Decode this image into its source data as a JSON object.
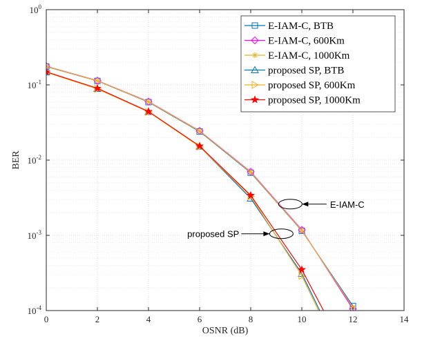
{
  "chart_data": {
    "type": "line",
    "title": "",
    "xlabel": "OSNR (dB)",
    "ylabel": "BER",
    "xlim": [
      0,
      14
    ],
    "ylim": [
      0.0001,
      1
    ],
    "yscale": "log",
    "grid": true,
    "legend_position": "top-right",
    "x_ticks": [
      "0",
      "2",
      "4",
      "6",
      "8",
      "10",
      "12",
      "14"
    ],
    "y_ticks": [
      {
        "base": "10",
        "exp": "0",
        "value": 1
      },
      {
        "base": "10",
        "exp": "-1",
        "value": 0.1
      },
      {
        "base": "10",
        "exp": "-2",
        "value": 0.01
      },
      {
        "base": "10",
        "exp": "-3",
        "value": 0.001
      },
      {
        "base": "10",
        "exp": "-4",
        "value": 0.0001
      }
    ],
    "series": [
      {
        "name": "E-IAM-C, BTB",
        "color": "#0072BD",
        "marker": "square",
        "x": [
          0,
          2,
          4,
          6,
          8,
          10,
          12
        ],
        "y": [
          0.175,
          0.113,
          0.059,
          0.024,
          0.0068,
          0.00115,
          0.000115
        ]
      },
      {
        "name": "E-IAM-C, 600Km",
        "color": "#FF00FF",
        "marker": "diamond",
        "x": [
          0,
          2,
          4,
          6,
          8,
          10,
          12
        ],
        "y": [
          0.177,
          0.114,
          0.06,
          0.0245,
          0.007,
          0.00118,
          0.000105
        ]
      },
      {
        "name": "E-IAM-C, 1000Km",
        "color": "#EDB120",
        "marker": "asterisk",
        "x": [
          0,
          2,
          4,
          6,
          8,
          10,
          12
        ],
        "y": [
          0.176,
          0.1135,
          0.0595,
          0.0243,
          0.0069,
          0.00116,
          0.00011
        ]
      },
      {
        "name": "proposed SP, BTB",
        "color": "#0072BD",
        "marker": "triangle",
        "x": [
          0,
          2,
          4,
          6,
          8,
          10,
          10.7
        ],
        "y": [
          0.148,
          0.089,
          0.044,
          0.0152,
          0.0031,
          0.00031,
          0.0001
        ]
      },
      {
        "name": "proposed SP, 600Km",
        "color": "#EDB120",
        "marker": "triangle-right",
        "x": [
          0,
          2,
          4,
          6,
          8,
          10,
          10.65
        ],
        "y": [
          0.147,
          0.0885,
          0.0437,
          0.0151,
          0.0033,
          0.00029,
          0.0001
        ]
      },
      {
        "name": "proposed SP, 1000Km",
        "color": "#FF0000",
        "marker": "star",
        "x": [
          0,
          2,
          4,
          6,
          8,
          10,
          10.85
        ],
        "y": [
          0.149,
          0.09,
          0.0443,
          0.0154,
          0.0034,
          0.00035,
          0.0001
        ]
      }
    ],
    "annotations": [
      {
        "text": "E-IAM-C",
        "ellipse_x": 9.55,
        "ellipse_y": 0.0026,
        "text_x": 11.05,
        "text_y": 0.0026
      },
      {
        "text": "proposed SP",
        "ellipse_x": 9.2,
        "ellipse_y": 0.00105,
        "text_x": 7.55,
        "text_y": 0.00105
      }
    ]
  }
}
